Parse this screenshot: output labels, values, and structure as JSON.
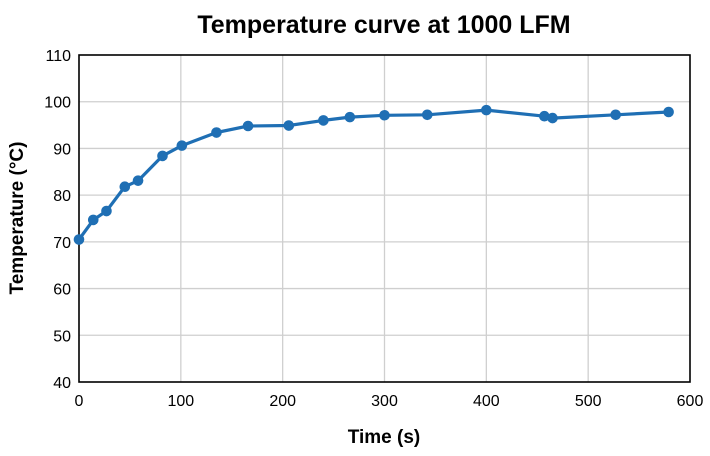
{
  "chart_data": {
    "type": "line",
    "title": "Temperature curve at 1000 LFM",
    "xlabel": "Time (s)",
    "ylabel": "Temperature (°C)",
    "xlim": [
      0,
      600
    ],
    "ylim": [
      40,
      110
    ],
    "x_ticks": [
      0,
      100,
      200,
      300,
      400,
      500,
      600
    ],
    "y_ticks": [
      40,
      50,
      60,
      70,
      80,
      90,
      100,
      110
    ],
    "grid": true,
    "legend": "none",
    "series": [
      {
        "color": "#1f6fb4",
        "x": [
          0,
          14,
          27,
          45,
          58,
          82,
          101,
          135,
          166,
          206,
          240,
          266,
          300,
          342,
          400,
          457,
          465,
          527,
          579
        ],
        "y": [
          70.5,
          74.7,
          76.6,
          81.8,
          83.1,
          88.4,
          90.6,
          93.4,
          94.8,
          94.9,
          96.0,
          96.7,
          97.1,
          97.2,
          98.2,
          96.9,
          96.5,
          97.2,
          97.8
        ]
      }
    ]
  }
}
